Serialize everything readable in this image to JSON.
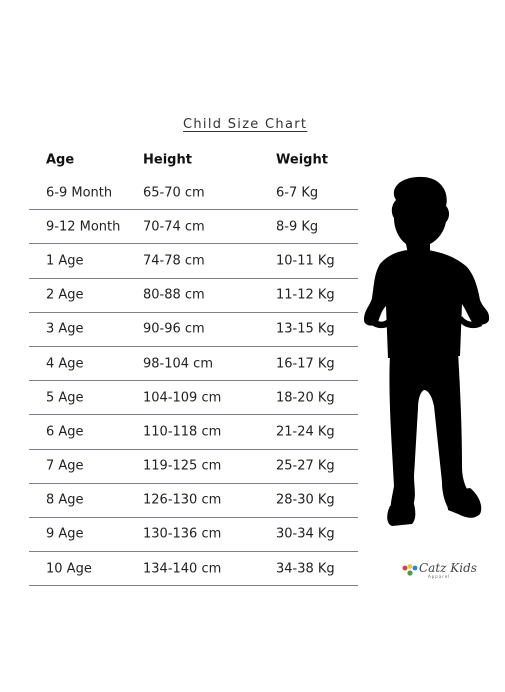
{
  "title": "Child Size Chart",
  "headers": {
    "age": "Age",
    "height": "Height",
    "weight": "Weight"
  },
  "rows": [
    {
      "age": "6-9 Month",
      "height": "65-70 cm",
      "weight": "6-7 Kg"
    },
    {
      "age": "9-12 Month",
      "height": "70-74 cm",
      "weight": "8-9 Kg"
    },
    {
      "age": "1 Age",
      "height": "74-78 cm",
      "weight": "10-11 Kg"
    },
    {
      "age": "2 Age",
      "height": "80-88 cm",
      "weight": "11-12 Kg"
    },
    {
      "age": "3 Age",
      "height": "90-96 cm",
      "weight": "13-15 Kg"
    },
    {
      "age": "4 Age",
      "height": "98-104 cm",
      "weight": "16-17 Kg"
    },
    {
      "age": "5 Age",
      "height": "104-109 cm",
      "weight": "18-20 Kg"
    },
    {
      "age": "6 Age",
      "height": "110-118 cm",
      "weight": "21-24 Kg"
    },
    {
      "age": "7 Age",
      "height": "119-125 cm",
      "weight": "25-27 Kg"
    },
    {
      "age": "8 Age",
      "height": "126-130 cm",
      "weight": "28-30 Kg"
    },
    {
      "age": "9 Age",
      "height": "130-136 cm",
      "weight": "30-34 Kg"
    },
    {
      "age": "10 Age",
      "height": "134-140 cm",
      "weight": "34-38 Kg"
    }
  ],
  "logo": {
    "name": "Catz Kids",
    "tagline": "Apparel",
    "dot_colors": [
      "#e53935",
      "#fbc02d",
      "#1e88e5",
      "#43a047"
    ]
  },
  "colors": {
    "rule": "#7b8190",
    "silhouette": "#000000"
  }
}
